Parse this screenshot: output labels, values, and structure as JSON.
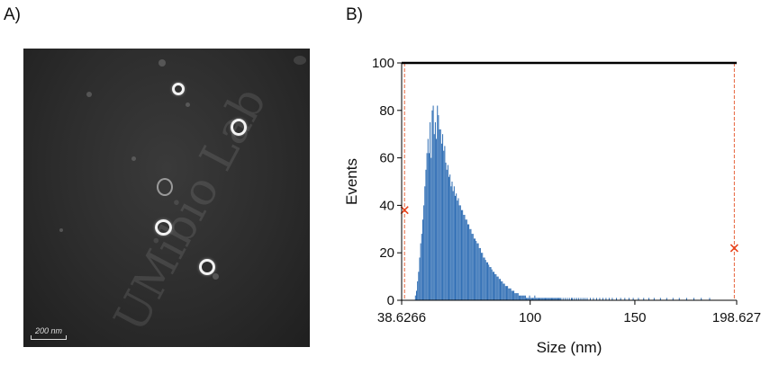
{
  "panels": {
    "a_label": "A)",
    "b_label": "B)"
  },
  "micrograph": {
    "watermark": "UMibio Lab",
    "scale_bar": "200 nm"
  },
  "chart_data": {
    "type": "bar",
    "xlabel": "Size (nm)",
    "ylabel": "Events",
    "xlim": [
      38.6266,
      198.627
    ],
    "ylim": [
      0,
      100
    ],
    "x_ticks": [
      {
        "value": 38.6266,
        "label": "38.6266"
      },
      {
        "value": 100,
        "label": "100"
      },
      {
        "value": 150,
        "label": "150"
      },
      {
        "value": 198.627,
        "label": "198.627"
      }
    ],
    "y_ticks": [
      0,
      20,
      40,
      60,
      80,
      100
    ],
    "gate_lines": [
      40,
      197.5
    ],
    "gate_markers": [
      {
        "x": 40,
        "y": 38
      },
      {
        "x": 197.5,
        "y": 22
      }
    ],
    "bin_width": 0.5,
    "bin_start": 45,
    "values": [
      2,
      4,
      8,
      12,
      18,
      24,
      28,
      34,
      40,
      48,
      55,
      62,
      68,
      62,
      75,
      60,
      80,
      82,
      70,
      75,
      68,
      82,
      78,
      72,
      72,
      66,
      70,
      63,
      65,
      58,
      55,
      57,
      52,
      53,
      48,
      50,
      46,
      48,
      44,
      45,
      42,
      43,
      40,
      40,
      38,
      38,
      36,
      36,
      34,
      34,
      32,
      32,
      30,
      30,
      28,
      28,
      26,
      26,
      25,
      24,
      24,
      22,
      22,
      20,
      20,
      18,
      18,
      17,
      16,
      16,
      15,
      14,
      14,
      13,
      12,
      12,
      11,
      11,
      10,
      10,
      9,
      9,
      8,
      8,
      7,
      7,
      6,
      6,
      6,
      5,
      5,
      5,
      4,
      4,
      4,
      3,
      3,
      3,
      3,
      2,
      2,
      2,
      2,
      2,
      2,
      2,
      1,
      1,
      1,
      2,
      1,
      1,
      1,
      1,
      2,
      1,
      1,
      1,
      1,
      1,
      1,
      1,
      1,
      1,
      1,
      1,
      1,
      1,
      1,
      1,
      1,
      1,
      1,
      1,
      1,
      1,
      1,
      1,
      1,
      1,
      0,
      1,
      0,
      1,
      0,
      1,
      0,
      1,
      0,
      1,
      1,
      0,
      1,
      0,
      1,
      0,
      1,
      0,
      1,
      0,
      1,
      0,
      1,
      0,
      1,
      0,
      0,
      1,
      0,
      0,
      1,
      0,
      0,
      1,
      0,
      0,
      1,
      0,
      0,
      1,
      0,
      0,
      1,
      0,
      0,
      1,
      0,
      0,
      1,
      0,
      0,
      0,
      1,
      0,
      0,
      0,
      1,
      0,
      0,
      0,
      1,
      0,
      0,
      0,
      1,
      0,
      0,
      0,
      1,
      0,
      0,
      0,
      0,
      1,
      0,
      0,
      0,
      0,
      1,
      0,
      0,
      0,
      0,
      1,
      0,
      0,
      0,
      0,
      1,
      0,
      0,
      0,
      0,
      0,
      1,
      0,
      0,
      0,
      0,
      0,
      1,
      0,
      0,
      0,
      0,
      0,
      1,
      0,
      0,
      0,
      0,
      0,
      1,
      0,
      0,
      0,
      0,
      0,
      0,
      1,
      0,
      0,
      0,
      0,
      0,
      0,
      1,
      0,
      0,
      0,
      0,
      0,
      0,
      1,
      0,
      0,
      0,
      0,
      0,
      0,
      0,
      1
    ]
  }
}
